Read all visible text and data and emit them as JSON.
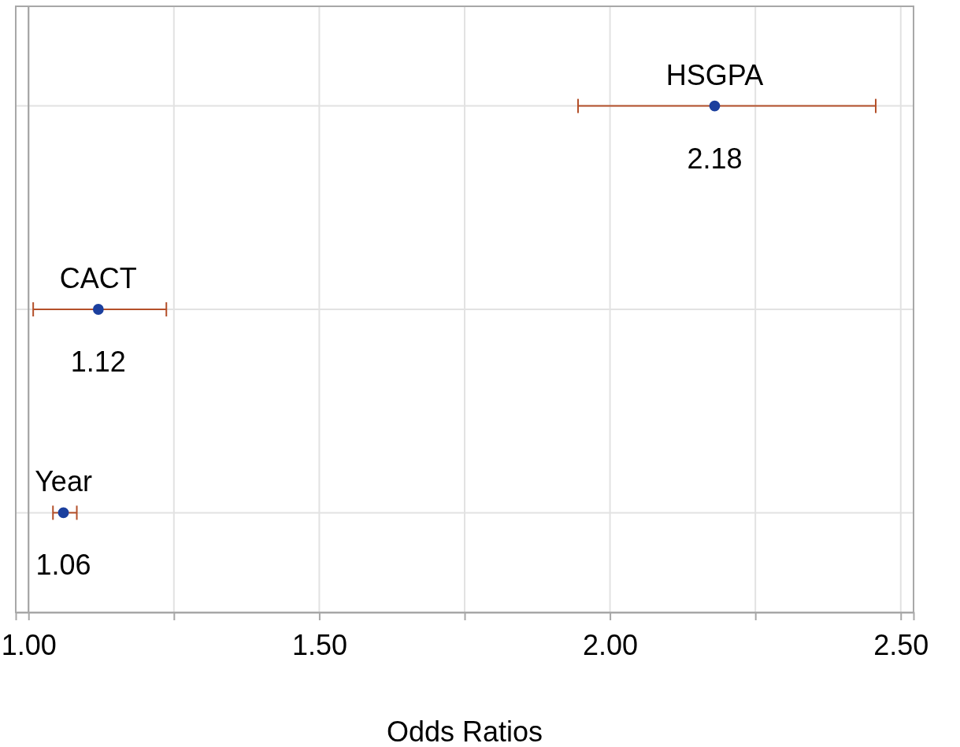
{
  "chart_data": {
    "type": "scatter",
    "orientation": "horizontal",
    "xlabel": "Odds Ratios",
    "categories": [
      "HSGPA",
      "CACT",
      "Year"
    ],
    "values": [
      2.18,
      1.12,
      1.06
    ],
    "errors": [
      [
        1.945,
        2.457
      ],
      [
        1.008,
        1.237
      ],
      [
        1.042,
        1.083
      ]
    ],
    "color": "#1b3f9e",
    "data_labels": true,
    "xlim": [
      0.978,
      2.522
    ],
    "xticks": [
      {
        "value": 1,
        "label": "1.00"
      },
      {
        "value": 1.25,
        "label": null
      },
      {
        "value": 1.5,
        "label": "1.50"
      },
      {
        "value": 1.75,
        "label": null
      },
      {
        "value": 2,
        "label": "2.00"
      },
      {
        "value": 2.25,
        "label": null
      },
      {
        "value": 2.5,
        "label": "2.50"
      }
    ],
    "ref_lines": [
      {
        "axis": "x",
        "value": 1.0,
        "color": "#a0a0a0"
      }
    ],
    "grid": true,
    "marker": "circle"
  }
}
